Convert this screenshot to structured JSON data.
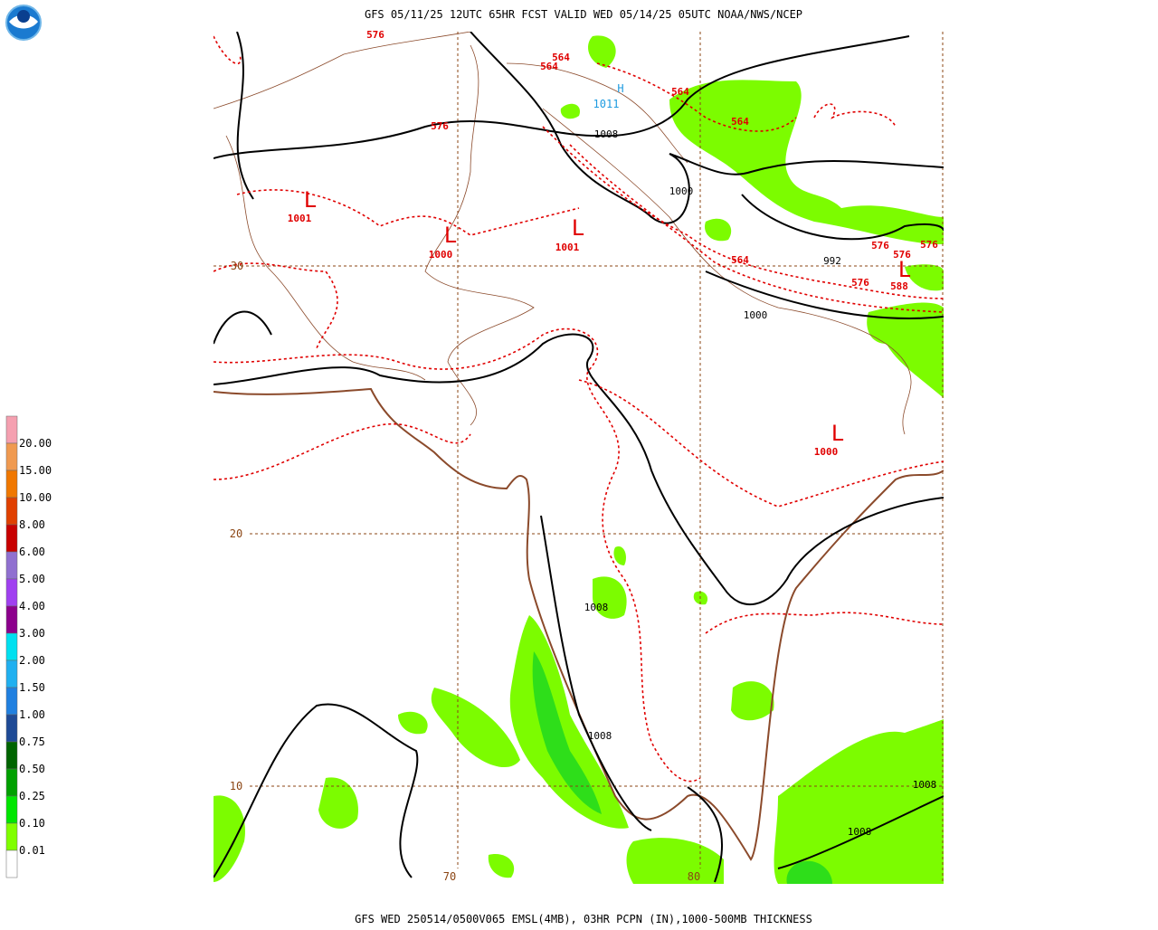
{
  "header": {
    "title": "GFS 05/11/25 12UTC 65HR FCST VALID WED 05/14/25 05UTC NOAA/NWS/NCEP"
  },
  "footer": {
    "caption": "GFS WED 250514/0500V065 EMSL(4MB), 03HR PCPN (IN),1000-500MB THICKNESS"
  },
  "legend": {
    "labels": [
      "20.00",
      "15.00",
      "10.00",
      "8.00",
      "6.00",
      "5.00",
      "4.00",
      "3.00",
      "2.00",
      "1.50",
      "1.00",
      "0.75",
      "0.50",
      "0.25",
      "0.10",
      "0.01"
    ],
    "colors": [
      "#f5a0b0",
      "#f09a50",
      "#f07800",
      "#e04000",
      "#c80000",
      "#9070d0",
      "#a040f0",
      "#8c008c",
      "#00e0f0",
      "#20b0f0",
      "#2080e0",
      "#1e4a96",
      "#006400",
      "#00a000",
      "#00e600",
      "#80ff00",
      "#ffffff"
    ]
  },
  "map": {
    "labels": [
      "576",
      "564",
      "564",
      "H",
      "1011",
      "576",
      "1008",
      "564",
      "564",
      "L",
      "1001",
      "L",
      "1000",
      "L",
      "1001",
      "1000",
      "576",
      "576",
      "576",
      "L",
      "992",
      "588",
      "576",
      "564",
      "1000",
      "L",
      "1000",
      "1008",
      "1008",
      "1008",
      "1008"
    ],
    "grid_labels": [
      "30",
      "20",
      "10",
      "70",
      "80"
    ]
  }
}
